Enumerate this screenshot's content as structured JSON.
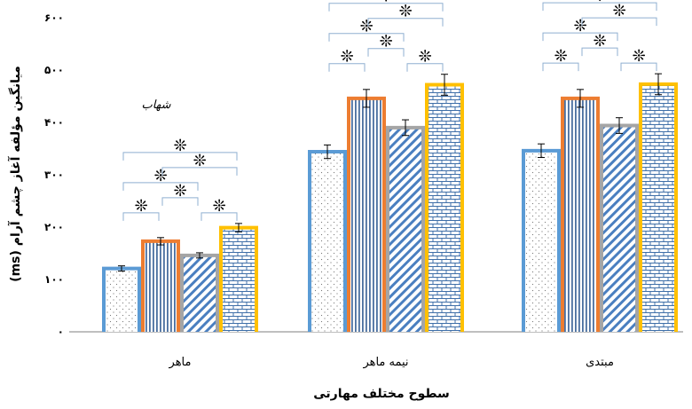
{
  "chart_data": {
    "type": "bar",
    "categories": [
      "ماهر",
      "نیمه ماهر",
      "مبتدی"
    ],
    "series": [
      {
        "values": [
          121,
          344,
          346
        ],
        "errors": [
          5,
          13,
          13
        ],
        "color": "#5B9BD5",
        "pattern": "dots"
      },
      {
        "values": [
          173,
          446,
          446
        ],
        "errors": [
          7,
          17,
          17
        ],
        "color": "#ED7D31",
        "pattern": "vertical"
      },
      {
        "values": [
          146,
          390,
          394
        ],
        "errors": [
          5,
          15,
          15
        ],
        "color": "#A5A5A5",
        "pattern": "diagonal"
      },
      {
        "values": [
          199,
          472,
          473
        ],
        "errors": [
          8,
          20,
          20
        ],
        "color": "#FFC000",
        "pattern": "bricks"
      }
    ],
    "ylabel": "میانگین مؤلفه آغاز چشم آرام (ms)",
    "xlabel": "سطوح مختلف مهارتی",
    "ylim": [
      0,
      600
    ],
    "yticks": [
      "۰",
      "۱۰۰",
      "۲۰۰",
      "۳۰۰",
      "۴۰۰",
      "۵۰۰",
      "۶۰۰"
    ],
    "significance_symbol": "❊",
    "annotation": "شهاب"
  }
}
